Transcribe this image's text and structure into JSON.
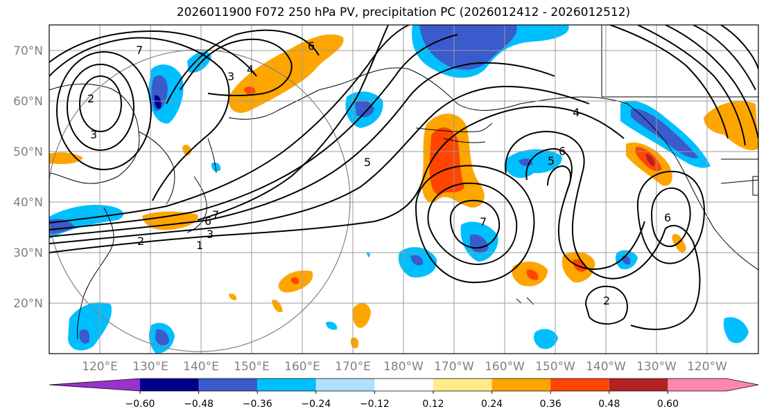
{
  "title": "2026011900 F072 250 hPa PV, precipitation PC (2026012412 - 2026012512)",
  "map": {
    "lat_labels": [
      "20°N",
      "30°N",
      "40°N",
      "50°N",
      "60°N",
      "70°N"
    ],
    "lat_values": [
      20,
      30,
      40,
      50,
      60,
      70
    ],
    "lon_labels": [
      "120°E",
      "130°E",
      "140°E",
      "150°E",
      "160°E",
      "170°E",
      "180°W",
      "170°W",
      "160°W",
      "150°W",
      "140°W",
      "130°W",
      "120°W"
    ],
    "lon_values": [
      120,
      130,
      140,
      150,
      160,
      170,
      180,
      190,
      200,
      210,
      220,
      230,
      240
    ],
    "lon_range": [
      109,
      249
    ],
    "lat_range": [
      10,
      75
    ],
    "pv_contour_labels": [
      "1",
      "2",
      "3",
      "4",
      "5",
      "6",
      "7"
    ]
  },
  "colorbar": {
    "tick_labels": [
      "−0.60",
      "−0.48",
      "−0.36",
      "−0.24",
      "−0.12",
      "0.12",
      "0.24",
      "0.36",
      "0.48",
      "0.60"
    ],
    "colors": [
      "#9933cc",
      "#00008b",
      "#3a5bcc",
      "#00bfff",
      "#b0e0ff",
      "#ffffff",
      "#ffeb8a",
      "#ffa500",
      "#ff4500",
      "#b22222",
      "#ff88aa"
    ]
  },
  "colors": {
    "land_outline": "#000000",
    "grid": "#9a9a9a",
    "contour": "#000000",
    "label": "#808080"
  }
}
